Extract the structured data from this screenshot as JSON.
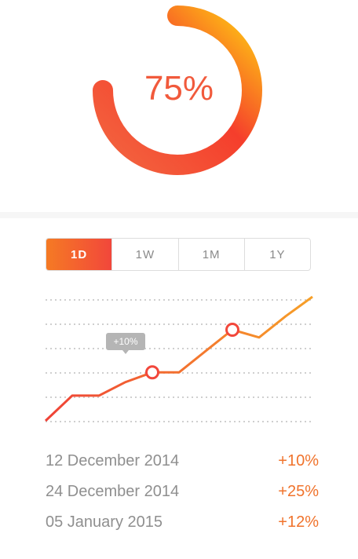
{
  "gauge": {
    "value_label": "75%",
    "percent": 75,
    "colors": {
      "start": "#f26640",
      "middle": "#f53e2c",
      "end": "#ffcc12"
    }
  },
  "tabs": [
    {
      "label": "1D",
      "active": true
    },
    {
      "label": "1W",
      "active": false
    },
    {
      "label": "1M",
      "active": false
    },
    {
      "label": "1Y",
      "active": false
    }
  ],
  "chart_data": {
    "type": "line",
    "x": [
      0,
      1,
      2,
      3,
      4,
      5,
      6,
      7,
      8,
      9,
      10
    ],
    "series": [
      {
        "values": [
          0,
          13,
          13,
          20,
          25,
          25,
          36,
          47,
          43,
          54,
          64
        ]
      }
    ],
    "highlight_points": [
      {
        "index": 4,
        "label": "+10%"
      },
      {
        "index": 7,
        "label": ""
      }
    ],
    "ylim": [
      0,
      64
    ],
    "grid": "horizontal-dotted",
    "colors": {
      "start": "#ef4237",
      "end": "#f7a028"
    }
  },
  "events": [
    {
      "date": "12 December 2014",
      "change": "+10%"
    },
    {
      "date": "24 December 2014",
      "change": "+25%"
    },
    {
      "date": "05 January 2015",
      "change": "+12%"
    }
  ]
}
